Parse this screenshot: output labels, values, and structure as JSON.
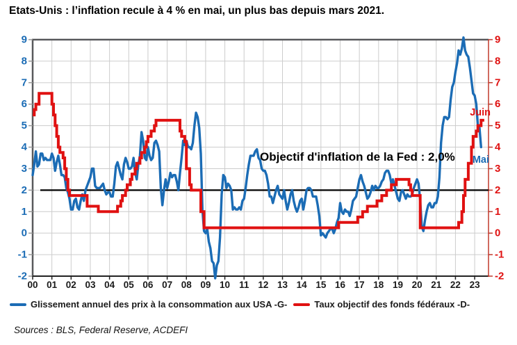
{
  "title": "Etats-Unis : l’inflation recule à 4 % en mai, un plus bas depuis mars 2021.",
  "sources": "Sources : BLS, Federal Reserve, ACDEFI",
  "colors": {
    "cpi_blue": "#1B6CB5",
    "fed_red": "#E01111",
    "target_black": "#000000",
    "grid": "#CCCCCC",
    "spine": "#58595B",
    "right_spine": "#C0392B",
    "x_label": "#1A1A1A"
  },
  "chart_data": {
    "type": "line",
    "title": "Etats-Unis : l’inflation recule à 4 % en mai, un plus bas depuis mars 2021.",
    "ylim": [
      -2,
      9
    ],
    "x_range_years": [
      2000,
      2023.72
    ],
    "grid": "on",
    "legend_position": "bottom-left",
    "x_axis": {
      "tick_labels": [
        "00",
        "01",
        "02",
        "03",
        "04",
        "05",
        "06",
        "07",
        "08",
        "09",
        "10",
        "11",
        "12",
        "13",
        "14",
        "15",
        "16",
        "17",
        "18",
        "19",
        "20",
        "21",
        "22",
        "23"
      ]
    },
    "y_axis_left": {
      "ticks": [
        -2,
        -1,
        0,
        1,
        2,
        3,
        4,
        5,
        6,
        7,
        8,
        9
      ],
      "color": "#1B6CB5"
    },
    "y_axis_right": {
      "ticks": [
        -2,
        -1,
        0,
        1,
        2,
        3,
        4,
        5,
        6,
        7,
        8,
        9
      ],
      "color": "#E01111"
    },
    "target_line": {
      "value": 2.0,
      "label": "Objectif d'inflation de la Fed : 2,0%",
      "color": "#000000"
    },
    "series": [
      {
        "name": "Glissement annuel des prix à la consommation aux USA -G-",
        "axis": "left",
        "style": "line",
        "color": "#1B6CB5",
        "start": "2000-01",
        "end": "2023-05",
        "end_label": "Mai",
        "values": [
          2.7,
          3.2,
          3.8,
          3.1,
          3.2,
          3.7,
          3.7,
          3.4,
          3.5,
          3.4,
          3.4,
          3.4,
          3.7,
          3.5,
          2.9,
          3.3,
          3.6,
          3.2,
          2.7,
          2.7,
          2.6,
          2.1,
          1.9,
          1.6,
          1.1,
          1.1,
          1.5,
          1.6,
          1.2,
          1.1,
          1.5,
          1.8,
          1.5,
          2.0,
          2.2,
          2.4,
          2.6,
          3.0,
          3.0,
          2.2,
          2.1,
          2.1,
          2.1,
          2.2,
          2.3,
          2.0,
          1.8,
          1.9,
          1.9,
          1.7,
          1.7,
          2.3,
          3.1,
          3.3,
          3.0,
          2.7,
          2.5,
          3.2,
          3.5,
          3.3,
          3.0,
          3.0,
          3.1,
          3.5,
          2.8,
          2.5,
          3.2,
          3.6,
          4.7,
          4.3,
          3.5,
          3.4,
          4.0,
          3.6,
          3.4,
          3.5,
          4.2,
          4.3,
          4.1,
          3.8,
          2.1,
          1.3,
          2.0,
          2.5,
          2.1,
          2.4,
          2.8,
          2.6,
          2.7,
          2.7,
          2.4,
          2.0,
          2.8,
          3.5,
          4.3,
          4.1,
          4.3,
          4.0,
          4.0,
          3.9,
          4.2,
          5.0,
          5.6,
          5.4,
          4.9,
          3.7,
          1.1,
          0.1,
          0.0,
          0.2,
          -0.4,
          -0.7,
          -1.3,
          -1.4,
          -2.1,
          -1.5,
          -1.3,
          -0.2,
          1.8,
          2.7,
          2.6,
          2.1,
          2.3,
          2.2,
          2.0,
          1.1,
          1.2,
          1.1,
          1.1,
          1.2,
          1.1,
          1.5,
          1.6,
          2.1,
          2.7,
          3.2,
          3.6,
          3.6,
          3.6,
          3.8,
          3.9,
          3.5,
          3.4,
          3.0,
          2.9,
          2.9,
          2.7,
          2.3,
          1.7,
          1.7,
          1.4,
          1.7,
          2.0,
          2.2,
          1.8,
          1.7,
          1.6,
          2.0,
          1.5,
          1.1,
          1.4,
          1.8,
          2.0,
          1.5,
          1.2,
          1.0,
          1.2,
          1.5,
          1.6,
          1.1,
          1.5,
          2.0,
          2.1,
          2.1,
          2.0,
          1.7,
          1.7,
          1.7,
          1.3,
          0.8,
          -0.1,
          0.0,
          -0.1,
          -0.2,
          0.0,
          0.1,
          0.2,
          0.2,
          0.0,
          0.2,
          0.5,
          0.7,
          1.4,
          1.0,
          0.9,
          1.1,
          1.0,
          1.0,
          0.8,
          1.1,
          1.5,
          1.6,
          1.7,
          2.1,
          2.5,
          2.7,
          2.4,
          2.2,
          1.9,
          1.6,
          1.7,
          1.9,
          2.2,
          2.0,
          2.2,
          2.1,
          2.1,
          2.2,
          2.4,
          2.5,
          2.8,
          2.9,
          2.9,
          2.7,
          2.3,
          2.5,
          2.2,
          1.9,
          1.6,
          1.5,
          1.9,
          2.0,
          1.8,
          1.6,
          1.8,
          1.7,
          1.7,
          1.8,
          2.1,
          2.3,
          2.5,
          2.3,
          1.5,
          0.3,
          0.1,
          0.6,
          1.0,
          1.3,
          1.4,
          1.2,
          1.2,
          1.4,
          1.4,
          1.7,
          2.6,
          4.2,
          5.0,
          5.4,
          5.4,
          5.3,
          5.4,
          6.2,
          6.8,
          7.0,
          7.5,
          7.9,
          8.5,
          8.3,
          8.6,
          9.1,
          8.5,
          8.3,
          8.2,
          7.7,
          7.1,
          6.5,
          6.4,
          6.0,
          5.0,
          4.9,
          4.0
        ]
      },
      {
        "name": "Taux objectif des fonds fédéraux -D-",
        "axis": "right",
        "style": "step",
        "color": "#E01111",
        "start": "2000-01",
        "end": "2023-06",
        "end_label": "Juin",
        "values": [
          5.5,
          5.75,
          6.0,
          6.0,
          6.5,
          6.5,
          6.5,
          6.5,
          6.5,
          6.5,
          6.5,
          6.5,
          6.0,
          5.5,
          5.0,
          4.5,
          4.0,
          3.75,
          3.75,
          3.5,
          3.0,
          2.5,
          2.0,
          1.75,
          1.75,
          1.75,
          1.75,
          1.75,
          1.75,
          1.75,
          1.75,
          1.75,
          1.75,
          1.75,
          1.25,
          1.25,
          1.25,
          1.25,
          1.25,
          1.25,
          1.25,
          1.0,
          1.0,
          1.0,
          1.0,
          1.0,
          1.0,
          1.0,
          1.0,
          1.0,
          1.0,
          1.0,
          1.0,
          1.25,
          1.25,
          1.5,
          1.75,
          1.75,
          2.0,
          2.25,
          2.25,
          2.5,
          2.75,
          2.75,
          3.0,
          3.25,
          3.25,
          3.5,
          3.75,
          3.75,
          4.0,
          4.25,
          4.5,
          4.5,
          4.75,
          4.75,
          5.0,
          5.25,
          5.25,
          5.25,
          5.25,
          5.25,
          5.25,
          5.25,
          5.25,
          5.25,
          5.25,
          5.25,
          5.25,
          5.25,
          5.25,
          5.25,
          4.75,
          4.5,
          4.5,
          4.25,
          3.0,
          3.0,
          2.25,
          2.0,
          2.0,
          2.0,
          2.0,
          2.0,
          2.0,
          1.0,
          1.0,
          0.25,
          0.25,
          0.25,
          0.25,
          0.25,
          0.25,
          0.25,
          0.25,
          0.25,
          0.25,
          0.25,
          0.25,
          0.25,
          0.25,
          0.25,
          0.25,
          0.25,
          0.25,
          0.25,
          0.25,
          0.25,
          0.25,
          0.25,
          0.25,
          0.25,
          0.25,
          0.25,
          0.25,
          0.25,
          0.25,
          0.25,
          0.25,
          0.25,
          0.25,
          0.25,
          0.25,
          0.25,
          0.25,
          0.25,
          0.25,
          0.25,
          0.25,
          0.25,
          0.25,
          0.25,
          0.25,
          0.25,
          0.25,
          0.25,
          0.25,
          0.25,
          0.25,
          0.25,
          0.25,
          0.25,
          0.25,
          0.25,
          0.25,
          0.25,
          0.25,
          0.25,
          0.25,
          0.25,
          0.25,
          0.25,
          0.25,
          0.25,
          0.25,
          0.25,
          0.25,
          0.25,
          0.25,
          0.25,
          0.25,
          0.25,
          0.25,
          0.25,
          0.25,
          0.25,
          0.25,
          0.25,
          0.25,
          0.25,
          0.25,
          0.5,
          0.5,
          0.5,
          0.5,
          0.5,
          0.5,
          0.5,
          0.5,
          0.5,
          0.5,
          0.5,
          0.5,
          0.75,
          0.75,
          0.75,
          1.0,
          1.0,
          1.0,
          1.25,
          1.25,
          1.25,
          1.25,
          1.25,
          1.25,
          1.5,
          1.5,
          1.5,
          1.75,
          1.75,
          1.75,
          2.0,
          2.0,
          2.0,
          2.25,
          2.25,
          2.25,
          2.5,
          2.5,
          2.5,
          2.5,
          2.5,
          2.5,
          2.5,
          2.5,
          2.25,
          2.0,
          1.75,
          1.75,
          1.75,
          1.75,
          1.75,
          0.25,
          0.25,
          0.25,
          0.25,
          0.25,
          0.25,
          0.25,
          0.25,
          0.25,
          0.25,
          0.25,
          0.25,
          0.25,
          0.25,
          0.25,
          0.25,
          0.25,
          0.25,
          0.25,
          0.25,
          0.25,
          0.25,
          0.25,
          0.25,
          0.5,
          0.5,
          1.0,
          1.75,
          2.5,
          2.5,
          3.25,
          3.25,
          4.0,
          4.5,
          4.5,
          4.75,
          5.0,
          5.0,
          5.25,
          5.25
        ]
      }
    ]
  }
}
